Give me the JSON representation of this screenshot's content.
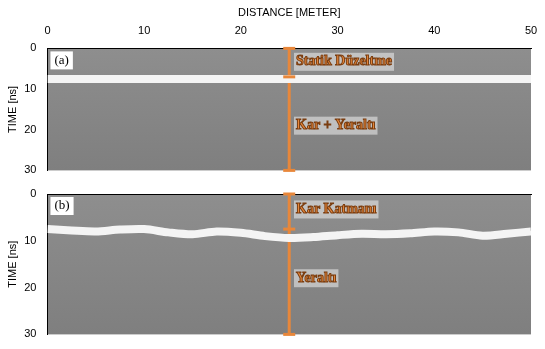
{
  "chart_data": [
    {
      "type": "line",
      "panel_label": "(a)",
      "x_label": "DISTANCE [METER]",
      "y_label": "TIME [ns]",
      "xlim": [
        0,
        50
      ],
      "xticks": [
        0,
        10,
        20,
        30,
        40,
        50
      ],
      "ylim": [
        30,
        0
      ],
      "yticks": [
        0,
        10,
        20,
        30
      ],
      "grid": false,
      "tick_labels": true,
      "color": "#101010",
      "x": [
        0,
        50
      ],
      "values": [
        7.5,
        7.5
      ],
      "bracket": {
        "x": 25,
        "y": [
          0,
          7,
          30
        ],
        "color": "#e8873a"
      },
      "annotations": [
        {
          "text": "Statik Düzeltme",
          "x": 25.7,
          "y": 3.3
        },
        {
          "text": "Kar + Yeraltı",
          "x": 25.7,
          "y": 19
        }
      ]
    },
    {
      "type": "line",
      "panel_label": "(b)",
      "y_label": "TIME [ns]",
      "xlim": [
        0,
        50
      ],
      "xticks": [
        0,
        10,
        20,
        30,
        40,
        50
      ],
      "ylim": [
        30,
        0
      ],
      "yticks": [
        0,
        10,
        20,
        30
      ],
      "grid": false,
      "tick_labels": "y",
      "color": "#101010",
      "x": [
        0,
        2.5,
        5,
        7.5,
        10,
        12.5,
        15,
        17.5,
        20,
        22.5,
        25,
        27.5,
        30,
        32.5,
        35,
        37.5,
        40,
        42.5,
        45,
        47.5,
        50
      ],
      "values": [
        7.5,
        7.8,
        8.0,
        7.6,
        7.5,
        8.2,
        8.6,
        8.0,
        8.3,
        9.0,
        9.4,
        9.2,
        8.8,
        8.5,
        8.6,
        8.4,
        8.0,
        8.2,
        8.9,
        8.5,
        8.0
      ],
      "bracket": {
        "x": 25,
        "y": [
          0,
          7.5,
          30
        ],
        "color": "#e8873a"
      },
      "annotations": [
        {
          "text": "Kar Katmanı",
          "x": 25.7,
          "y": 3.3
        },
        {
          "text": "Yeraltı",
          "x": 25.7,
          "y": 18
        }
      ]
    }
  ]
}
